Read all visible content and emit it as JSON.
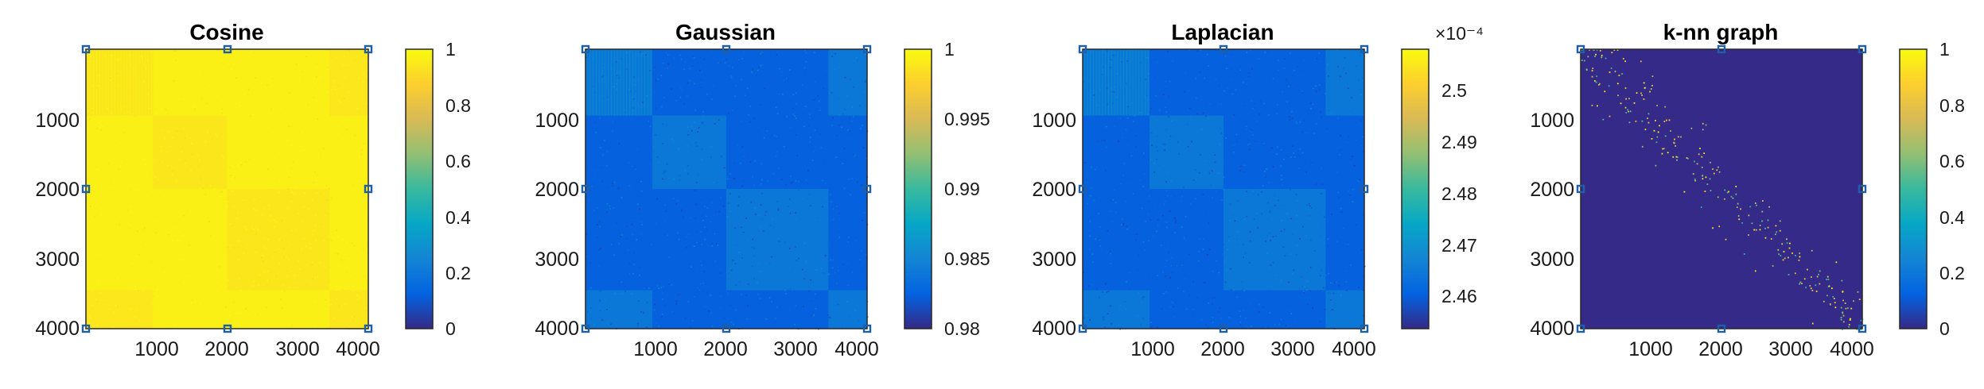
{
  "colormap": [
    "#352a87",
    "#0363e1",
    "#1485d4",
    "#06a7c6",
    "#38b99e",
    "#92bf73",
    "#d9ba56",
    "#fcce2e",
    "#f9fb0e"
  ],
  "chart_data": [
    {
      "type": "heatmap",
      "title": "Cosine",
      "matrix_size": 4000,
      "xticks": [
        "1000",
        "2000",
        "3000",
        "4000"
      ],
      "yticks": [
        "1000",
        "2000",
        "3000",
        "4000"
      ],
      "clim": [
        0,
        1
      ],
      "colorbar_ticks": [
        "0",
        "0.2",
        "0.4",
        "0.6",
        "0.8",
        "1"
      ],
      "colorbar_exponent": "",
      "level": 0.97,
      "block_boundaries": [
        0,
        950,
        2000,
        3450,
        4000
      ],
      "diag_block_level": 0.92,
      "pattern": "blocks"
    },
    {
      "type": "heatmap",
      "title": "Gaussian",
      "matrix_size": 4000,
      "xticks": [
        "1000",
        "2000",
        "3000",
        "4000"
      ],
      "yticks": [
        "1000",
        "2000",
        "3000",
        "4000"
      ],
      "clim": [
        0.98,
        1
      ],
      "colorbar_ticks": [
        "0.98",
        "0.985",
        "0.99",
        "0.995",
        "1"
      ],
      "colorbar_exponent": "",
      "level": 0.12,
      "block_boundaries": [
        0,
        950,
        2000,
        3450,
        4000
      ],
      "diag_block_level": 0.28,
      "pattern": "blocks"
    },
    {
      "type": "heatmap",
      "title": "Laplacian",
      "matrix_size": 4000,
      "xticks": [
        "1000",
        "2000",
        "3000",
        "4000"
      ],
      "yticks": [
        "1000",
        "2000",
        "3000",
        "4000"
      ],
      "clim": [
        2.453,
        2.507
      ],
      "colorbar_ticks": [
        "2.46",
        "2.47",
        "2.48",
        "2.49",
        "2.5"
      ],
      "colorbar_exponent": "×10⁻⁴",
      "level": 0.12,
      "block_boundaries": [
        0,
        950,
        2000,
        3450,
        4000
      ],
      "diag_block_level": 0.28,
      "pattern": "blocks"
    },
    {
      "type": "heatmap",
      "title": "k-nn graph",
      "matrix_size": 4000,
      "xticks": [
        "1000",
        "2000",
        "3000",
        "4000"
      ],
      "yticks": [
        "1000",
        "2000",
        "3000",
        "4000"
      ],
      "clim": [
        0,
        1
      ],
      "colorbar_ticks": [
        "0",
        "0.2",
        "0.4",
        "0.6",
        "0.8",
        "1"
      ],
      "colorbar_exponent": "",
      "level": 0.0,
      "pattern": "sparse-diagonal"
    }
  ]
}
